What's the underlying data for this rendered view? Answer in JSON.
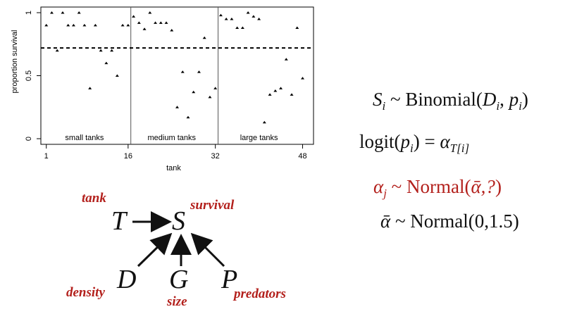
{
  "chart_data": {
    "type": "scatter",
    "xlabel": "tank",
    "ylabel": "proportion survival",
    "xlim": [
      0,
      50
    ],
    "ylim": [
      0,
      1
    ],
    "x_ticks": [
      1,
      16,
      32,
      48
    ],
    "y_ticks": [
      0,
      0.5,
      1
    ],
    "y_tick_labels": [
      "0",
      "0.5",
      "1"
    ],
    "mean_line": 0.72,
    "dividers": [
      16.5,
      32.5
    ],
    "groups": [
      {
        "label": "small tanks",
        "x": 8
      },
      {
        "label": "medium tanks",
        "x": 24
      },
      {
        "label": "large tanks",
        "x": 40
      }
    ],
    "points": {
      "x": [
        1,
        2,
        3,
        4,
        5,
        6,
        7,
        8,
        9,
        10,
        11,
        12,
        13,
        14,
        15,
        16,
        17,
        18,
        19,
        20,
        21,
        22,
        23,
        24,
        25,
        26,
        27,
        28,
        29,
        30,
        31,
        32,
        33,
        34,
        35,
        36,
        37,
        38,
        39,
        40,
        41,
        42,
        43,
        44,
        45,
        46,
        47,
        48
      ],
      "y": [
        0.9,
        1,
        0.7,
        1,
        0.9,
        0.9,
        1,
        0.9,
        0.4,
        0.9,
        0.7,
        0.6,
        0.7,
        0.5,
        0.9,
        0.9,
        0.97,
        0.92,
        0.87,
        1,
        0.92,
        0.92,
        0.92,
        0.86,
        0.25,
        0.53,
        0.17,
        0.37,
        0.53,
        0.8,
        0.33,
        0.4,
        0.98,
        0.95,
        0.95,
        0.88,
        0.88,
        1,
        0.97,
        0.95,
        0.13,
        0.35,
        0.38,
        0.4,
        0.63,
        0.35,
        0.88,
        0.48
      ]
    }
  },
  "equations": {
    "line1": {
      "lhs_var": "S",
      "lhs_sub": "i",
      "tilde": "~",
      "dist": "Binomial(",
      "arg1": "D",
      "arg1_sub": "i",
      "sep": ",",
      "arg2": "p",
      "arg2_sub": "i",
      "close": ")"
    },
    "line2": {
      "func": "logit(",
      "var": "p",
      "var_sub": "i",
      "close": ")",
      "eq": "=",
      "rhs": "α",
      "rhs_sub": "T[i]"
    },
    "line3": {
      "lhs": "α",
      "lhs_sub": "j",
      "tilde": "~",
      "dist": "Normal(",
      "args": "ᾱ,?",
      "close": ")"
    },
    "line4": {
      "lhs": "ᾱ",
      "tilde": "~",
      "dist": "Normal(",
      "args": "0,1.5",
      "close": ")"
    }
  },
  "dag": {
    "nodes": {
      "T": "T",
      "S": "S",
      "D": "D",
      "G": "G",
      "P": "P"
    },
    "labels": {
      "T": "tank",
      "S": "survival",
      "D": "density",
      "G": "size",
      "P": "predators"
    }
  }
}
